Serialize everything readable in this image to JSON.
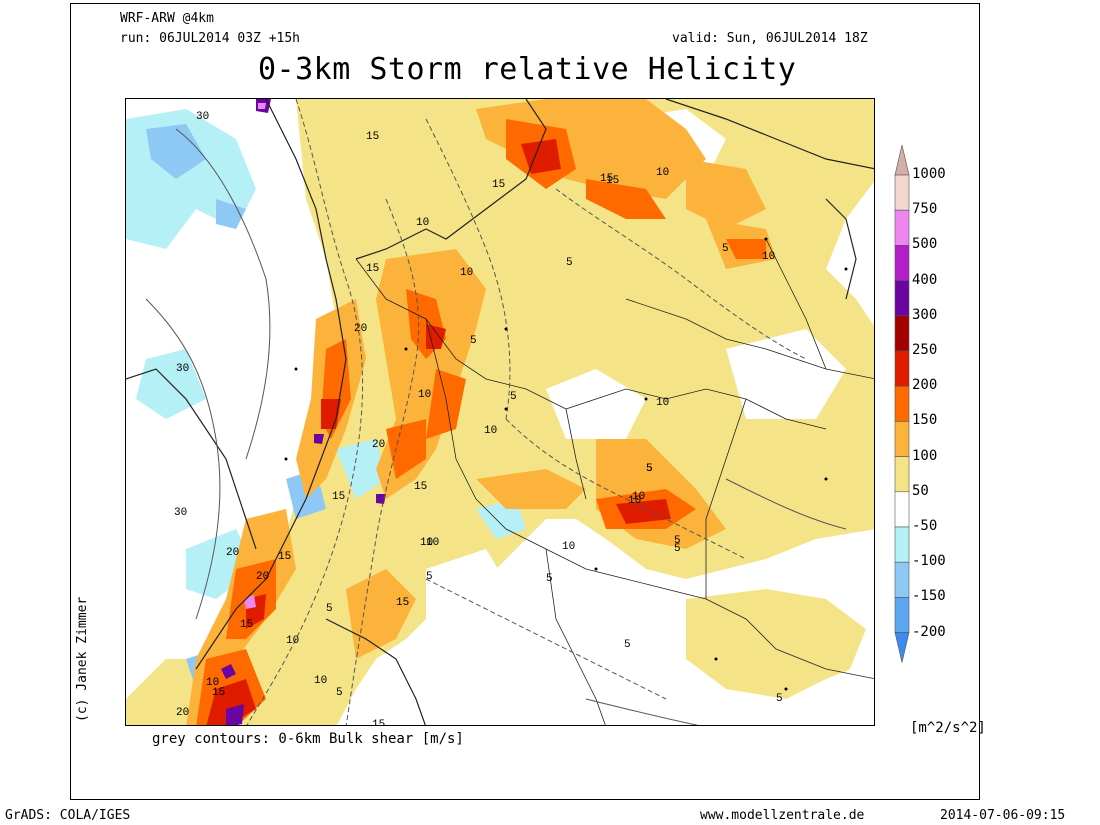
{
  "header": {
    "model": "WRF-ARW @4km",
    "run": "run: 06JUL2014 03Z +15h",
    "valid": "valid: Sun, 06JUL2014 18Z",
    "title": "0-3km Storm relative Helicity"
  },
  "footer": {
    "contour_note": "grey contours: 0-6km Bulk shear [m/s]",
    "grads": "GrADS: COLA/IGES",
    "website": "www.modellzentrale.de",
    "timestamp": "2014-07-06-09:15",
    "credit": "(c) Janek Zimmer"
  },
  "colorbar": {
    "unit": "[m^2/s^2]",
    "levels": [
      {
        "label": "1000",
        "color": "#d2b0a8"
      },
      {
        "label": "750",
        "color": "#f3d6cd"
      },
      {
        "label": "500",
        "color": "#ef86ef"
      },
      {
        "label": "400",
        "color": "#b21ec8"
      },
      {
        "label": "300",
        "color": "#6a05a2"
      },
      {
        "label": "250",
        "color": "#a30000"
      },
      {
        "label": "200",
        "color": "#e01c00"
      },
      {
        "label": "150",
        "color": "#ff6a00"
      },
      {
        "label": "100",
        "color": "#fbb33c"
      },
      {
        "label": "50",
        "color": "#f5e487"
      },
      {
        "label": "-50",
        "color": "#ffffff"
      },
      {
        "label": "-100",
        "color": "#b4f0f5"
      },
      {
        "label": "-150",
        "color": "#8ec8f5"
      },
      {
        "label": "-200",
        "color": "#5aa6f0"
      }
    ],
    "bottom_color": "#3c8cf0"
  },
  "contour_labels": [
    "30",
    "15",
    "15",
    "10",
    "15",
    "10",
    "15",
    "5",
    "10",
    "5",
    "20",
    "30",
    "10",
    "5",
    "5",
    "10",
    "10",
    "20",
    "15",
    "5",
    "15",
    "10",
    "5",
    "10",
    "30",
    "20",
    "15",
    "10",
    "10",
    "5",
    "5",
    "10",
    "5",
    "15",
    "20",
    "15",
    "10",
    "5",
    "15",
    "10",
    "10",
    "5",
    "5",
    "20",
    "15",
    "5",
    "15",
    "5",
    "10"
  ]
}
